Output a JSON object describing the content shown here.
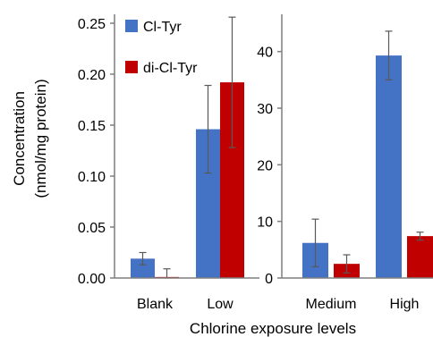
{
  "figure": {
    "xlabel": "Chlorine exposure levels",
    "ylabel_line1": "Concentration",
    "ylabel_line2": "(nmol/mg protein)"
  },
  "legend": {
    "placement": "top-left",
    "items": [
      {
        "name": "Cl-Tyr",
        "color": "#4472C4"
      },
      {
        "name": "di-Cl-Tyr",
        "color": "#C00000"
      }
    ]
  },
  "chart_data": [
    {
      "type": "bar",
      "categories": [
        "Blank",
        "Low"
      ],
      "ylim": [
        0,
        0.25
      ],
      "yticks": [
        "0.00",
        "0.05",
        "0.10",
        "0.15",
        "0.20",
        "0.25"
      ],
      "grid": false,
      "series": [
        {
          "name": "Cl-Tyr",
          "color": "#4472C4",
          "values": [
            0.019,
            0.146
          ],
          "errors": [
            0.006,
            0.043
          ]
        },
        {
          "name": "di-Cl-Tyr",
          "color": "#C00000",
          "values": [
            0.001,
            0.192
          ],
          "errors": [
            0.008,
            0.064
          ]
        }
      ]
    },
    {
      "type": "bar",
      "categories": [
        "Medium",
        "High"
      ],
      "ylim": [
        0,
        45
      ],
      "yticks": [
        "0",
        "10",
        "20",
        "30",
        "40"
      ],
      "grid": false,
      "series": [
        {
          "name": "Cl-Tyr",
          "color": "#4472C4",
          "values": [
            6.2,
            39.3
          ],
          "errors": [
            4.2,
            4.3
          ]
        },
        {
          "name": "di-Cl-Tyr",
          "color": "#C00000",
          "values": [
            2.5,
            7.4
          ],
          "errors": [
            1.6,
            0.7
          ]
        }
      ]
    }
  ]
}
